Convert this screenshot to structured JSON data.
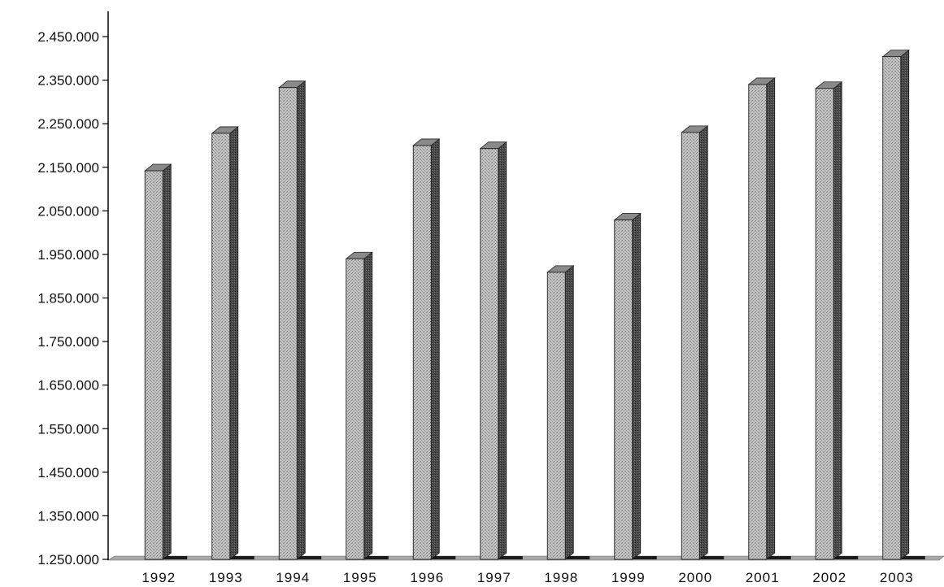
{
  "chart_data": {
    "type": "bar",
    "title": "",
    "xlabel": "",
    "ylabel": "",
    "categories": [
      "1992",
      "1993",
      "1994",
      "1995",
      "1996",
      "1997",
      "1998",
      "1999",
      "2000",
      "2001",
      "2002",
      "2003"
    ],
    "values": [
      2142000,
      2228000,
      2333000,
      1940000,
      2200000,
      2193000,
      1909000,
      2029000,
      2230000,
      2340000,
      2331000,
      2404000
    ],
    "ylim": [
      1250000,
      2450000
    ],
    "yticks": [
      1250000,
      1350000,
      1450000,
      1550000,
      1650000,
      1750000,
      1850000,
      1950000,
      2050000,
      2150000,
      2250000,
      2350000,
      2450000
    ],
    "ytick_labels": [
      "1.250.000",
      "1.350.000",
      "1.450.000",
      "1.550.000",
      "1.650.000",
      "1.750.000",
      "1.850.000",
      "1.950.000",
      "2.050.000",
      "2.150.000",
      "2.250.000",
      "2.350.000",
      "2.450.000"
    ],
    "grid": false,
    "legend": "none",
    "style": "3d",
    "colors": {
      "bar_front": "#b9b9b9",
      "bar_side": "#555555",
      "bar_top": "#8a8a8a",
      "axis": "#000000",
      "floor": "#9a9a9a"
    }
  }
}
